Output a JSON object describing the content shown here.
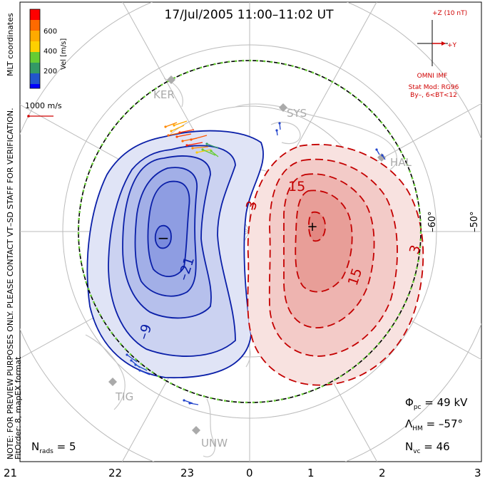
{
  "title": "17/Jul/2005  11:00–11:02  UT",
  "colorbar": {
    "label": "Vel [m/s]",
    "ticks": [
      "600",
      "400",
      "200"
    ],
    "colors": [
      "#ff0000",
      "#ff6a00",
      "#ffd000",
      "#66cc33",
      "#339966",
      "#2255cc",
      "#0000ff"
    ]
  },
  "mlt_label": "MLT coordinates",
  "reference_vector": "1000 m/s",
  "side_note_1": "NOTE: FOR PREVIEW PURPOSES ONLY. PLEASE CONTACT VT–SD STAFF FOR VERIFICATION.",
  "side_note_2": "FitOrder: 8, mapEX format",
  "imf": {
    "z_label": "+Z (10 nT)",
    "y_label": "+Y",
    "source": "OMNI IMF",
    "model": "Stat Mod: RG96",
    "condition": "By–, 6<BT<12"
  },
  "stations": [
    "KER",
    "SYS",
    "HAL",
    "TIG",
    "UNW"
  ],
  "lat_labels": [
    "–60°",
    "–50°"
  ],
  "contour_labels": {
    "neg": [
      "–21",
      "–9"
    ],
    "pos": [
      "3",
      "15",
      "15",
      "3"
    ]
  },
  "min_marker": "−",
  "max_marker": "+",
  "stats": {
    "phi_sym": "Φ",
    "phi_sub": "pc",
    "phi_val": " = 49 kV",
    "lam_sym": "Λ",
    "lam_sub": "HM",
    "lam_val": " = –57°",
    "nvc_sym": "N",
    "nvc_sub": "vc",
    "nvc_val": " = 46",
    "nrads_sym": "N",
    "nrads_sub": "rads",
    "nrads_val": " = 5"
  },
  "mlt_ticks": [
    "21",
    "22",
    "23",
    "0",
    "1",
    "2",
    "3"
  ],
  "colors": {
    "neg_line": "#0a1fa8",
    "pos_line": "#c40000",
    "imf_red": "#d00000",
    "grid": "#bbbbbb",
    "coast": "#c8c8c8",
    "boundary_green": "#66cc33"
  }
}
